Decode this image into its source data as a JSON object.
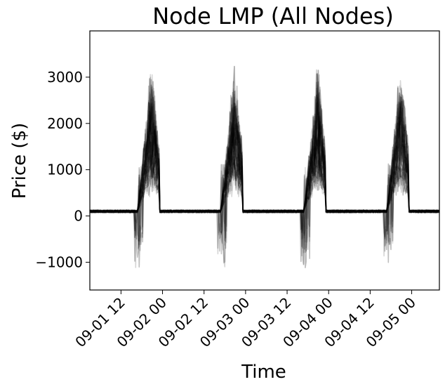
{
  "chart_data": {
    "type": "line",
    "title": "Node LMP (All Nodes)",
    "xlabel": "Time",
    "ylabel": "Price ($)",
    "line_color": "#000000",
    "series_style": "many overlapping semi-transparent black lines, one per node",
    "x_range": [
      "2024-09-01 03:00",
      "2024-09-05 08:00"
    ],
    "ylim": [
      -1600,
      4000
    ],
    "x_ticks": [
      {
        "value": "2024-09-01 12:00",
        "label": "09-01 12"
      },
      {
        "value": "2024-09-02 00:00",
        "label": "09-02 00"
      },
      {
        "value": "2024-09-02 12:00",
        "label": "09-02 12"
      },
      {
        "value": "2024-09-03 00:00",
        "label": "09-03 00"
      },
      {
        "value": "2024-09-03 12:00",
        "label": "09-03 12"
      },
      {
        "value": "2024-09-04 00:00",
        "label": "09-04 00"
      },
      {
        "value": "2024-09-04 12:00",
        "label": "09-04 12"
      },
      {
        "value": "2024-09-05 00:00",
        "label": "09-05 00"
      }
    ],
    "y_ticks": [
      {
        "value": -1000,
        "label": "−1000"
      },
      {
        "value": 0,
        "label": "0"
      },
      {
        "value": 1000,
        "label": "1000"
      },
      {
        "value": 2000,
        "label": "2000"
      },
      {
        "value": 3000,
        "label": "3000"
      }
    ],
    "grid": false,
    "legend": "none",
    "daily_pattern": {
      "baseline_price": 100,
      "evening_peak_start_hour": 17,
      "evening_peak_end_hour": 23,
      "peak_max_price": 3650,
      "negative_dip_min_price": -1350,
      "days": [
        "2024-09-01",
        "2024-09-02",
        "2024-09-03",
        "2024-09-04"
      ]
    },
    "node_count": 40,
    "end_of_data": "2024-09-05 08:00"
  }
}
